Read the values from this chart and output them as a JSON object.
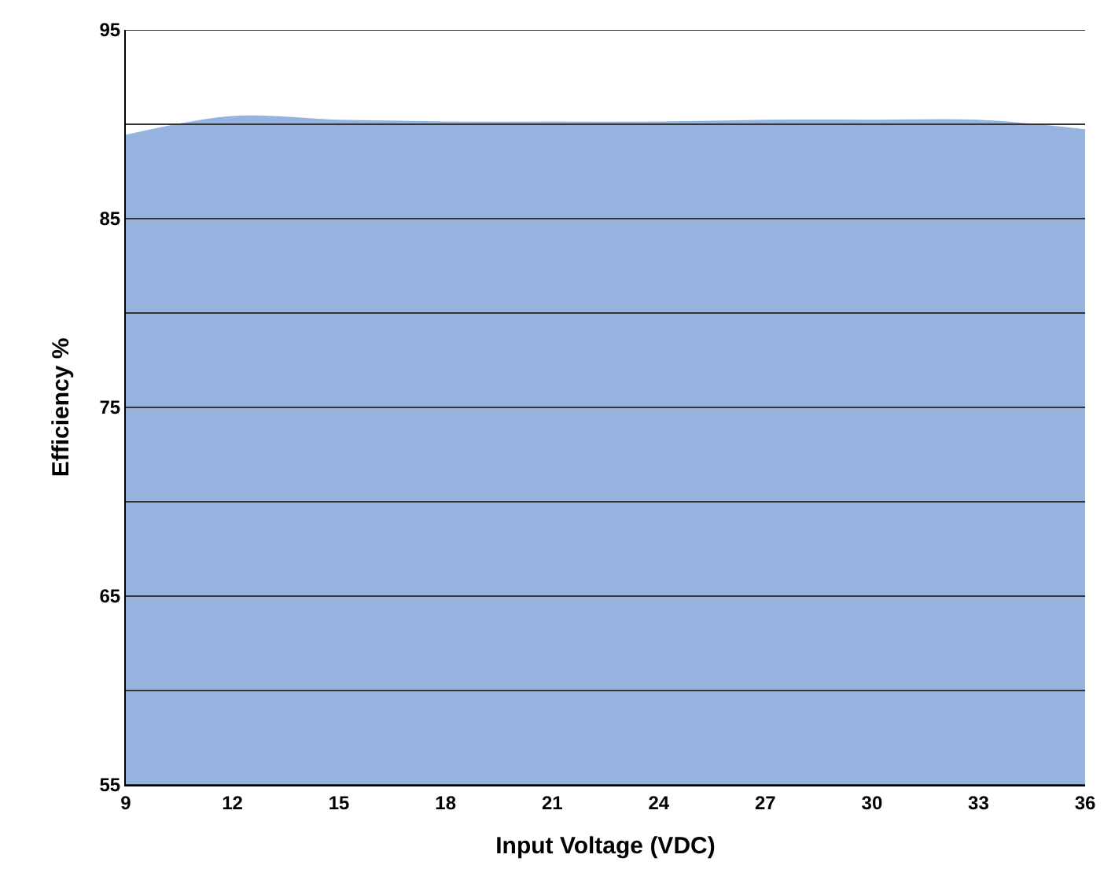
{
  "chart_data": {
    "type": "area",
    "xlabel": "Input Voltage (VDC)",
    "ylabel": "Efficiency %",
    "x": [
      9,
      12,
      15,
      18,
      21,
      24,
      27,
      30,
      33,
      36
    ],
    "series": [
      {
        "color": "#95b3de",
        "values": [
          89.4,
          90.4,
          90.2,
          90.1,
          90.1,
          90.1,
          90.2,
          90.2,
          90.2,
          89.7
        ]
      }
    ],
    "xlim": [
      9,
      36
    ],
    "xticks": [
      9,
      12,
      15,
      18,
      21,
      24,
      27,
      30,
      33,
      36
    ],
    "ylim": [
      55,
      95
    ],
    "yticks": [
      55,
      {
        "value": 60,
        "label": null
      },
      65,
      {
        "value": 70,
        "label": null
      },
      75,
      {
        "value": 80,
        "label": null
      },
      85,
      {
        "value": 90,
        "label": null
      },
      95
    ],
    "grid": "y"
  }
}
